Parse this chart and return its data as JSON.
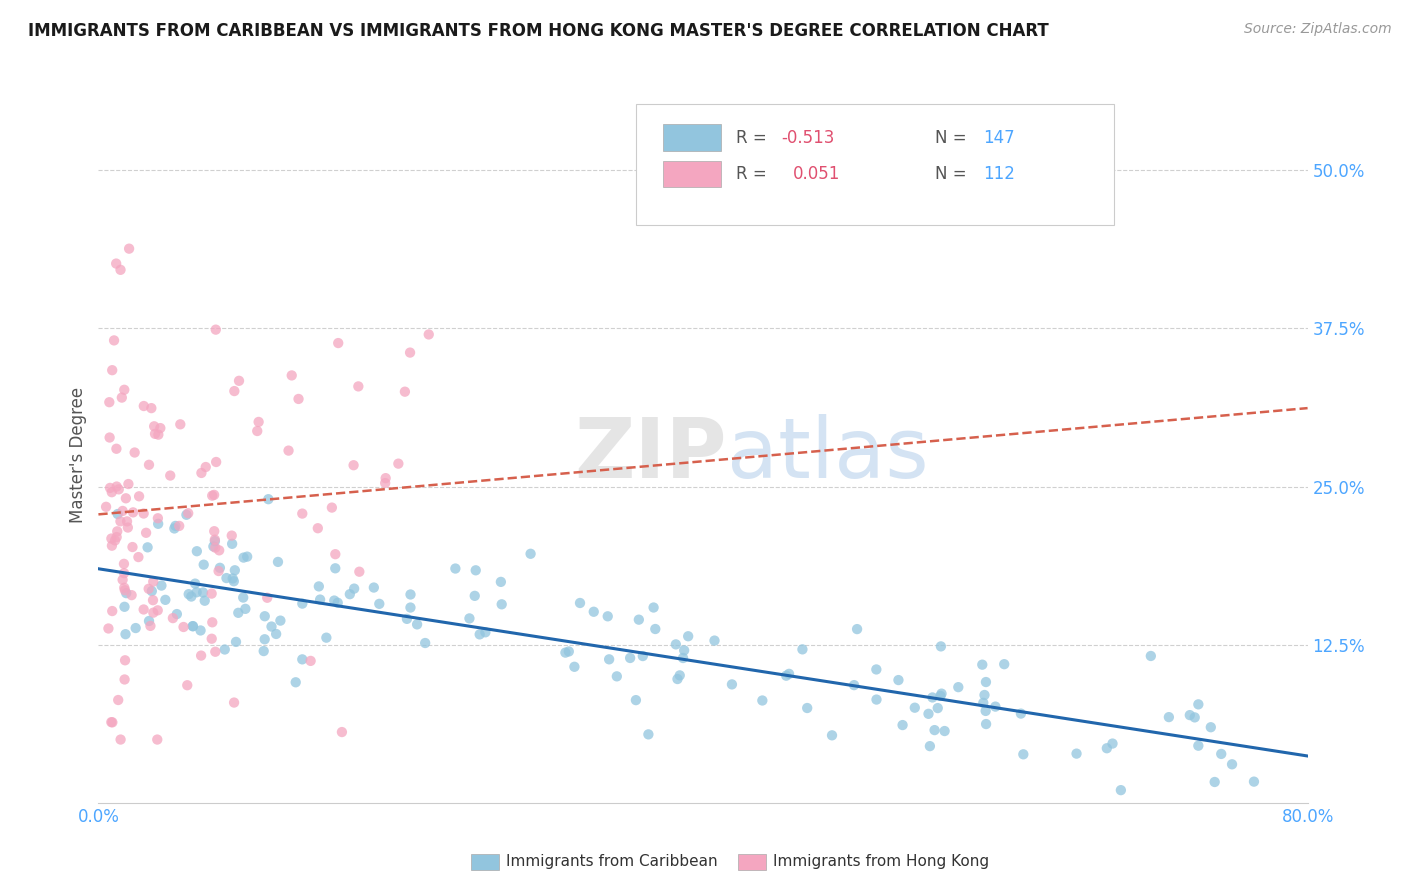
{
  "title": "IMMIGRANTS FROM CARIBBEAN VS IMMIGRANTS FROM HONG KONG MASTER'S DEGREE CORRELATION CHART",
  "source_text": "Source: ZipAtlas.com",
  "ylabel": "Master's Degree",
  "x_label_caribbean": "Immigrants from Caribbean",
  "x_label_hongkong": "Immigrants from Hong Kong",
  "xlim": [
    0.0,
    0.8
  ],
  "ylim": [
    0.0,
    0.55
  ],
  "ytick_positions": [
    0.0,
    0.125,
    0.25,
    0.375,
    0.5
  ],
  "ytick_labels": [
    "",
    "12.5%",
    "25.0%",
    "37.5%",
    "50.0%"
  ],
  "blue_color": "#92c5de",
  "pink_color": "#f4a6c0",
  "blue_line_color": "#2166ac",
  "pink_line_color": "#d6604d",
  "blue_R": -0.513,
  "blue_N": 147,
  "pink_R": 0.051,
  "pink_N": 112,
  "watermark_zip": "ZIP",
  "watermark_atlas": "atlas",
  "background_color": "#ffffff",
  "grid_color": "#d0d0d0",
  "blue_intercept": 0.185,
  "blue_slope": -0.185,
  "pink_intercept": 0.228,
  "pink_slope": 0.105
}
